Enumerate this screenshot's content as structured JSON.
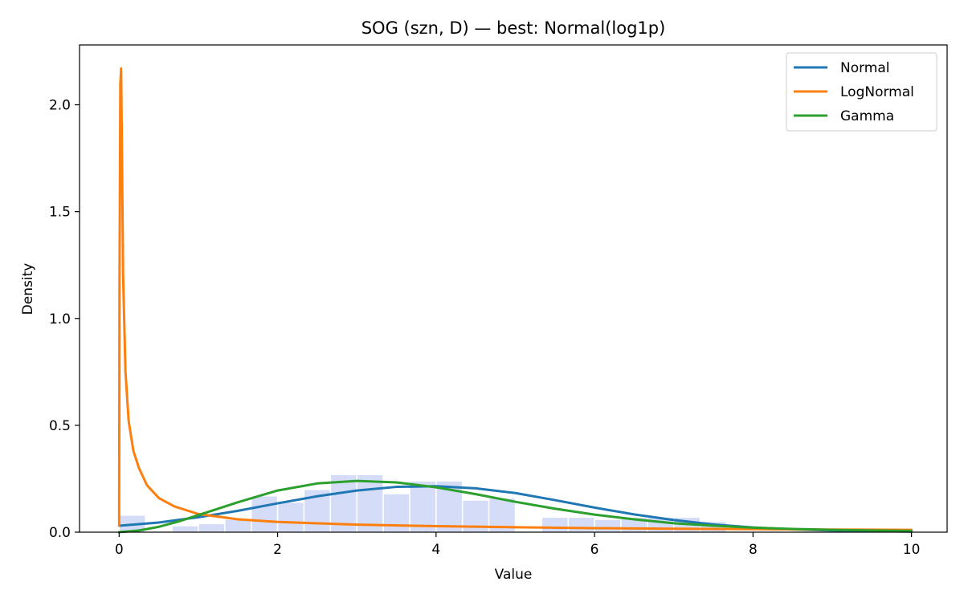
{
  "chart_data": {
    "type": "line",
    "title": "SOG (szn, D) — best: Normal(log1p)",
    "xlabel": "Value",
    "ylabel": "Density",
    "xlim": [
      -0.5,
      10.45
    ],
    "ylim": [
      0,
      2.28
    ],
    "xticks": [
      0,
      2,
      4,
      6,
      8,
      10
    ],
    "yticks": [
      0.0,
      0.5,
      1.0,
      1.5,
      2.0
    ],
    "xtick_labels": [
      "0",
      "2",
      "4",
      "6",
      "8",
      "10"
    ],
    "ytick_labels": [
      "0.0",
      "0.5",
      "1.0",
      "1.5",
      "2.0"
    ],
    "grid": false,
    "legend_position": "top-right",
    "histogram": {
      "color": "#d4dcf7",
      "bin_edges": [
        0,
        0.333,
        0.667,
        1.0,
        1.333,
        1.667,
        2.0,
        2.333,
        2.667,
        3.0,
        3.333,
        3.667,
        4.0,
        4.333,
        4.667,
        5.0,
        5.333,
        5.667,
        6.0,
        6.333,
        6.667,
        7.0,
        7.333,
        7.667,
        8.0,
        8.333,
        8.667,
        9.0,
        9.333,
        9.667,
        10.0
      ],
      "densities": [
        0.08,
        0.0,
        0.03,
        0.04,
        0.06,
        0.17,
        0.14,
        0.2,
        0.27,
        0.27,
        0.18,
        0.24,
        0.24,
        0.15,
        0.16,
        0.0,
        0.07,
        0.07,
        0.06,
        0.07,
        0.07,
        0.07,
        0.05,
        0.0,
        0.0,
        0.0,
        0.0,
        0.0,
        0.0,
        0.0
      ]
    },
    "series": [
      {
        "name": "Normal",
        "color": "#1f77b4",
        "x": [
          0,
          0.5,
          1,
          1.5,
          2,
          2.5,
          3,
          3.5,
          4,
          4.5,
          5,
          5.5,
          6,
          6.5,
          7,
          7.5,
          8,
          8.5,
          9,
          9.5,
          10
        ],
        "y": [
          0.03,
          0.045,
          0.07,
          0.1,
          0.135,
          0.168,
          0.195,
          0.212,
          0.215,
          0.205,
          0.183,
          0.15,
          0.115,
          0.083,
          0.057,
          0.036,
          0.022,
          0.013,
          0.008,
          0.005,
          0.003
        ]
      },
      {
        "name": "LogNormal",
        "color": "#ff7f0e",
        "x": [
          0,
          0.005,
          0.015,
          0.025,
          0.035,
          0.05,
          0.08,
          0.12,
          0.18,
          0.25,
          0.35,
          0.5,
          0.7,
          1.0,
          1.5,
          2,
          3,
          4,
          5,
          6,
          7,
          8,
          9,
          10
        ],
        "y": [
          0.03,
          1.2,
          2.1,
          2.17,
          1.8,
          1.2,
          0.75,
          0.52,
          0.38,
          0.3,
          0.22,
          0.16,
          0.12,
          0.085,
          0.06,
          0.048,
          0.035,
          0.028,
          0.023,
          0.019,
          0.016,
          0.014,
          0.012,
          0.011
        ]
      },
      {
        "name": "Gamma",
        "color": "#2ca02c",
        "x": [
          0,
          0.25,
          0.5,
          0.75,
          1,
          1.5,
          2,
          2.5,
          3,
          3.5,
          4,
          4.5,
          5,
          5.5,
          6,
          6.5,
          7,
          7.5,
          8,
          8.5,
          9,
          9.5,
          10
        ],
        "y": [
          0.0,
          0.008,
          0.025,
          0.05,
          0.08,
          0.14,
          0.195,
          0.228,
          0.24,
          0.233,
          0.21,
          0.178,
          0.142,
          0.11,
          0.082,
          0.06,
          0.042,
          0.03,
          0.021,
          0.015,
          0.011,
          0.008,
          0.006
        ]
      }
    ]
  }
}
